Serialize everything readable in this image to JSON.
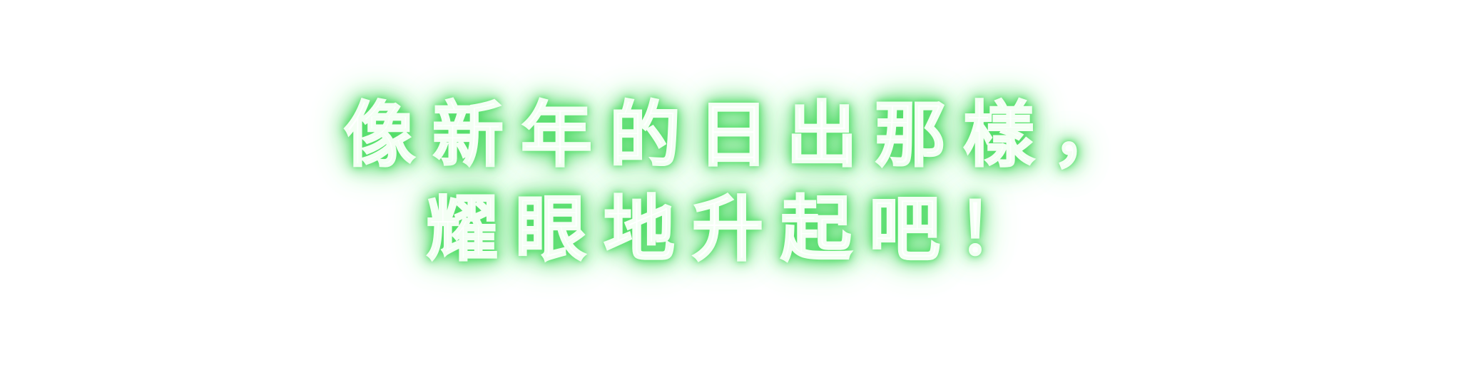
{
  "caption": {
    "line1": "像新年的日出那樣，",
    "line2": "耀眼地升起吧！"
  },
  "colors": {
    "background": "#ffffff",
    "text": "#ffffff",
    "glow": "#4fdc66"
  }
}
